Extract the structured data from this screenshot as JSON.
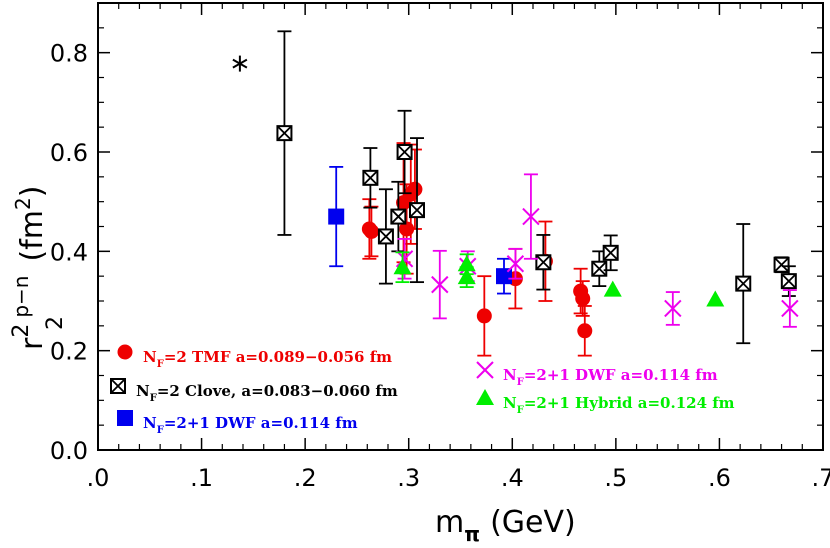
{
  "chart_data": {
    "type": "scatter",
    "xlabel": "m",
    "xlabel_sub": "π",
    "xlabel_unit": "(GeV)",
    "ylabel_base": "r",
    "ylabel_sup": "2",
    "ylabel_sub": "2",
    "ylabel_channel": "p−n",
    "ylabel_unit": "(fm",
    "ylabel_unit_sup": "2",
    "ylabel_unit_close": ")",
    "xlim": [
      0.0,
      0.7
    ],
    "ylim": [
      0.0,
      0.9
    ],
    "x_ticks": [
      0.0,
      0.1,
      0.2,
      0.3,
      0.4,
      0.5,
      0.6,
      0.7
    ],
    "x_tick_labels": [
      ".0",
      ".1",
      ".2",
      ".3",
      ".4",
      ".5",
      ".6",
      ".7"
    ],
    "y_ticks": [
      0.0,
      0.2,
      0.4,
      0.6,
      0.8
    ],
    "y_tick_labels": [
      "0.0",
      "0.2",
      "0.4",
      "0.6",
      "0.8"
    ],
    "grid": false,
    "series": [
      {
        "key": "tmf",
        "name": "N_f=2 TMF a=0.089−0.056 fm",
        "legend_prefix": "N",
        "legend_sub": "F",
        "legend_rest": "=2 TMF a=0.089−0.056 fm",
        "color": "#ee0000",
        "marker": "circle",
        "points": [
          {
            "x": 0.262,
            "y": 0.445,
            "err": 0.06
          },
          {
            "x": 0.264,
            "y": 0.44,
            "err": 0.05
          },
          {
            "x": 0.295,
            "y": 0.498,
            "err": 0.12
          },
          {
            "x": 0.298,
            "y": 0.445,
            "err": 0.09
          },
          {
            "x": 0.302,
            "y": 0.515,
            "err": 0.1
          },
          {
            "x": 0.306,
            "y": 0.525,
            "err": 0.08
          },
          {
            "x": 0.373,
            "y": 0.27,
            "err": 0.08
          },
          {
            "x": 0.403,
            "y": 0.345,
            "err": 0.06
          },
          {
            "x": 0.432,
            "y": 0.38,
            "err": 0.08
          },
          {
            "x": 0.466,
            "y": 0.32,
            "err": 0.045
          },
          {
            "x": 0.468,
            "y": 0.305,
            "err": 0.035
          },
          {
            "x": 0.47,
            "y": 0.24,
            "err": 0.05
          }
        ]
      },
      {
        "key": "clover",
        "name": "N_f=2 Clove, a=0.083−0.060 fm",
        "legend_prefix": "N",
        "legend_sub": "F",
        "legend_rest": "=2 Clove, a=0.083−0.060 fm",
        "color": "#000000",
        "marker": "boxcross",
        "points": [
          {
            "x": 0.18,
            "y": 0.638,
            "err": 0.205
          },
          {
            "x": 0.263,
            "y": 0.548,
            "err": 0.06
          },
          {
            "x": 0.278,
            "y": 0.43,
            "err": 0.095
          },
          {
            "x": 0.29,
            "y": 0.47,
            "err": 0.07
          },
          {
            "x": 0.296,
            "y": 0.6,
            "err": 0.083
          },
          {
            "x": 0.308,
            "y": 0.483,
            "err": 0.145
          },
          {
            "x": 0.43,
            "y": 0.378,
            "err": 0.055
          },
          {
            "x": 0.484,
            "y": 0.365,
            "err": 0.035
          },
          {
            "x": 0.495,
            "y": 0.397,
            "err": 0.035
          },
          {
            "x": 0.623,
            "y": 0.335,
            "err": 0.12
          },
          {
            "x": 0.66,
            "y": 0.373,
            "err": 0.015
          },
          {
            "x": 0.667,
            "y": 0.34,
            "err": 0.03
          }
        ]
      },
      {
        "key": "dwf_box",
        "name": "N_f=2+1 DWF a=0.114 fm",
        "legend_prefix": "N",
        "legend_sub": "F",
        "legend_rest": "=2+1 DWF a=0.114 fm",
        "color": "#0000ee",
        "marker": "square",
        "points": [
          {
            "x": 0.23,
            "y": 0.47,
            "err": 0.1
          },
          {
            "x": 0.392,
            "y": 0.35,
            "err": 0.035
          }
        ]
      },
      {
        "key": "dwf_cross",
        "name": "N_f=2+1 DWF a=0.114 fm",
        "legend_prefix": "N",
        "legend_sub": "F",
        "legend_rest": "=2+1 DWF a=0.114 fm",
        "color": "#ee00ee",
        "marker": "x",
        "points": [
          {
            "x": 0.296,
            "y": 0.385,
            "err": 0.04
          },
          {
            "x": 0.33,
            "y": 0.333,
            "err": 0.068
          },
          {
            "x": 0.357,
            "y": 0.37,
            "err": 0.03
          },
          {
            "x": 0.403,
            "y": 0.375,
            "err": 0.03
          },
          {
            "x": 0.418,
            "y": 0.47,
            "err": 0.085
          },
          {
            "x": 0.555,
            "y": 0.285,
            "err": 0.033
          },
          {
            "x": 0.668,
            "y": 0.285,
            "err": 0.037
          }
        ]
      },
      {
        "key": "hybrid",
        "name": "N_f=2+1 Hybrid a=0.124 fm",
        "legend_prefix": "N",
        "legend_sub": "F",
        "legend_rest": "=2+1 Hybrid a=0.124 fm",
        "color": "#00ee00",
        "marker": "triangle",
        "points": [
          {
            "x": 0.294,
            "y": 0.368,
            "err": 0.03
          },
          {
            "x": 0.356,
            "y": 0.374,
            "err": 0.02
          },
          {
            "x": 0.356,
            "y": 0.348,
            "err": 0.02
          },
          {
            "x": 0.497,
            "y": 0.323,
            "err": 0.0
          },
          {
            "x": 0.596,
            "y": 0.303,
            "err": 0.0
          }
        ]
      },
      {
        "key": "star",
        "name": "",
        "color": "#000000",
        "marker": "star",
        "points": [
          {
            "x": 0.137,
            "y": 0.778,
            "err": 0.0
          }
        ]
      }
    ],
    "legend": [
      {
        "series": "tmf",
        "placement": "lower-left"
      },
      {
        "series": "clover",
        "placement": "lower-left"
      },
      {
        "series": "dwf_box",
        "placement": "lower-left"
      },
      {
        "series": "dwf_cross",
        "placement": "lower-middle"
      },
      {
        "series": "hybrid",
        "placement": "lower-middle"
      }
    ]
  }
}
